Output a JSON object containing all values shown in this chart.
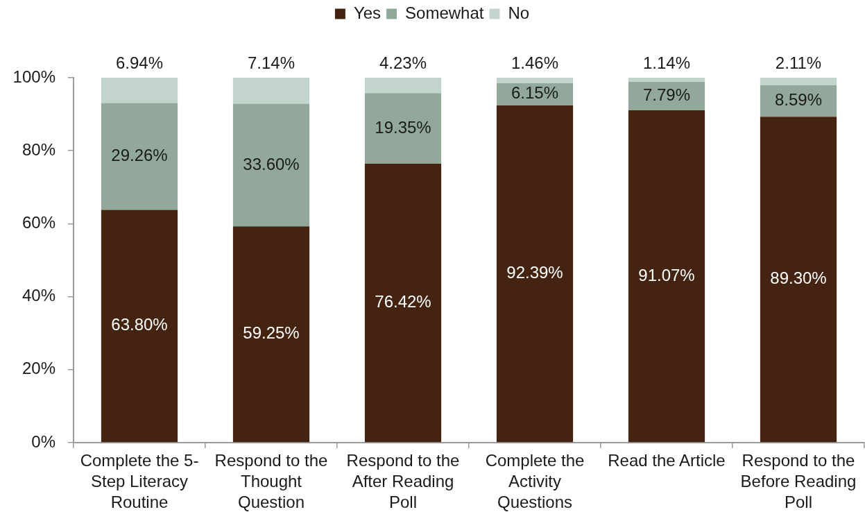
{
  "chart_data": {
    "type": "bar",
    "stacked": true,
    "legend": "top",
    "categories": [
      "Complete the 5-Step Literacy Routine",
      "Respond to the Thought Question",
      "Respond to the After Reading Poll",
      "Complete the Activity Questions",
      "Read the Article",
      "Respond to the Before Reading Poll"
    ],
    "series": [
      {
        "name": "Yes",
        "color": "#442411",
        "values": [
          63.8,
          59.25,
          76.42,
          92.39,
          91.07,
          89.3
        ],
        "value_labels": [
          "63.80%",
          "59.25%",
          "76.42%",
          "92.39%",
          "91.07%",
          "89.30%"
        ]
      },
      {
        "name": "Somewhat",
        "color": "#91a89b",
        "values": [
          29.26,
          33.6,
          19.35,
          6.15,
          7.79,
          8.59
        ],
        "value_labels": [
          "29.26%",
          "33.60%",
          "19.35%",
          "6.15%",
          "7.79%",
          "8.59%"
        ]
      },
      {
        "name": "No",
        "color": "#c3d4cd",
        "values": [
          6.94,
          7.14,
          4.23,
          1.46,
          1.14,
          2.11
        ],
        "value_labels": [
          "6.94%",
          "7.14%",
          "4.23%",
          "1.46%",
          "1.14%",
          "2.11%"
        ]
      }
    ],
    "ylim": [
      0,
      100
    ],
    "yticks": [
      {
        "value": 0,
        "label": "0%"
      },
      {
        "value": 20,
        "label": "20%"
      },
      {
        "value": 40,
        "label": "40%"
      },
      {
        "value": 60,
        "label": "60%"
      },
      {
        "value": 80,
        "label": "80%"
      },
      {
        "value": 100,
        "label": "100%"
      }
    ]
  }
}
